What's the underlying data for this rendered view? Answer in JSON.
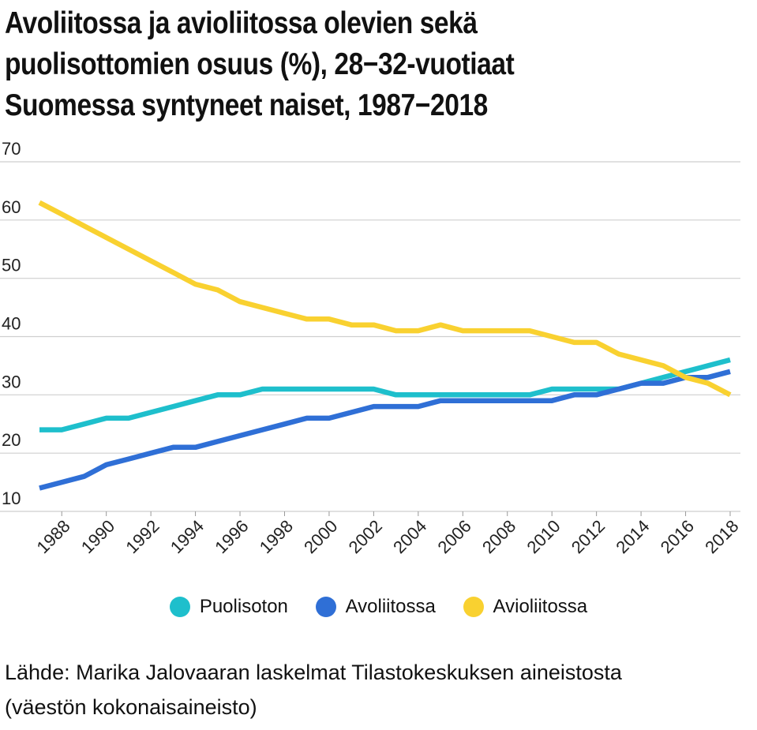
{
  "title_lines": [
    "Avoliitossa ja avioliitossa olevien sekä",
    "puolisottomien osuus (%), 28−32-vuotiaat",
    "Suomessa syntyneet naiset, 1987−2018"
  ],
  "source_lines": [
    "Lähde: Marika Jalovaaran laskelmat Tilastokeskuksen aineistosta",
    "(väestön kokonaisaineisto)"
  ],
  "chart_data": {
    "type": "line",
    "title": "Avoliitossa ja avioliitossa olevien sekä puolisottomien osuus (%), 28−32-vuotiaat Suomessa syntyneet naiset, 1987−2018",
    "xlabel": "",
    "ylabel": "",
    "x": [
      1987,
      1988,
      1989,
      1990,
      1991,
      1992,
      1993,
      1994,
      1995,
      1996,
      1997,
      1998,
      1999,
      2000,
      2001,
      2002,
      2003,
      2004,
      2005,
      2006,
      2007,
      2008,
      2009,
      2010,
      2011,
      2012,
      2013,
      2014,
      2015,
      2016,
      2017,
      2018
    ],
    "xticks": [
      1988,
      1990,
      1992,
      1994,
      1996,
      1998,
      2000,
      2002,
      2004,
      2006,
      2008,
      2010,
      2012,
      2014,
      2016,
      2018
    ],
    "yticks": [
      10,
      20,
      30,
      40,
      50,
      60,
      70
    ],
    "xlim": [
      1987,
      2018
    ],
    "ylim": [
      10,
      70
    ],
    "grid": "horizontal",
    "legend_position": "bottom",
    "series": [
      {
        "name": "Puolisoton",
        "color": "#1ebfcc",
        "values": [
          24,
          24,
          25,
          26,
          26,
          27,
          28,
          29,
          30,
          30,
          31,
          31,
          31,
          31,
          31,
          31,
          30,
          30,
          30,
          30,
          30,
          30,
          30,
          31,
          31,
          31,
          31,
          32,
          33,
          34,
          35,
          36
        ]
      },
      {
        "name": "Avoliitossa",
        "color": "#2f6fd6",
        "values": [
          14,
          15,
          16,
          18,
          19,
          20,
          21,
          21,
          22,
          23,
          24,
          25,
          26,
          26,
          27,
          28,
          28,
          28,
          29,
          29,
          29,
          29,
          29,
          29,
          30,
          30,
          31,
          32,
          32,
          33,
          33,
          34
        ]
      },
      {
        "name": "Avioliitossa",
        "color": "#f9d130",
        "values": [
          63,
          61,
          59,
          57,
          55,
          53,
          51,
          49,
          48,
          46,
          45,
          44,
          43,
          43,
          42,
          42,
          41,
          41,
          42,
          41,
          41,
          41,
          41,
          40,
          39,
          39,
          37,
          36,
          35,
          33,
          32,
          30
        ]
      }
    ]
  }
}
